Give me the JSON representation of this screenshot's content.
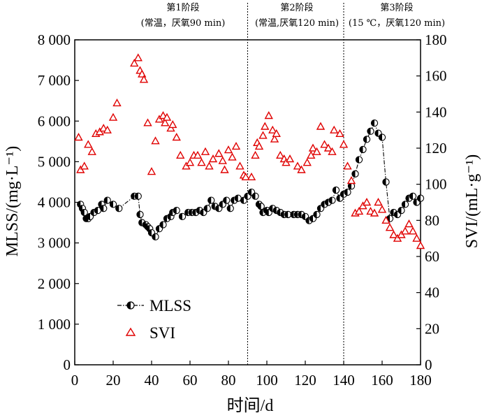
{
  "chart_data": {
    "type": "line",
    "xlabel": "时间/d",
    "ylabel_left": "MLSS/(mg·L⁻¹)",
    "ylabel_right": "SVI/(mL·g⁻¹)",
    "xlim": [
      0,
      180
    ],
    "ylim_left": [
      0,
      8000
    ],
    "ylim_right": [
      0,
      180
    ],
    "x_ticks": [
      0,
      20,
      40,
      60,
      80,
      100,
      120,
      140,
      160,
      180
    ],
    "y_left_ticks": [
      0,
      1000,
      2000,
      3000,
      4000,
      5000,
      6000,
      7000,
      8000
    ],
    "y_left_tick_labels": [
      "0",
      "1 000",
      "2 000",
      "3 000",
      "4 000",
      "5 000",
      "6 000",
      "7 000",
      "8 000"
    ],
    "y_right_ticks": [
      0,
      20,
      40,
      60,
      80,
      100,
      120,
      140,
      160,
      180
    ],
    "grid": false,
    "legend_position": "bottom-left",
    "phase_dividers": [
      90,
      140
    ],
    "phases": [
      {
        "title": "第1阶段",
        "condition": "(常温，厌氧90 min)"
      },
      {
        "title": "第2阶段",
        "condition": "(常温,厌氧120 min)"
      },
      {
        "title": "第3阶段",
        "condition": "(15 ℃，厌氧120 min)"
      }
    ],
    "series": [
      {
        "name": "MLSS",
        "axis": "left",
        "marker": "half-filled-circle",
        "line": "dash-dot",
        "color": "#000000",
        "points": [
          [
            3,
            3950
          ],
          [
            4,
            3850
          ],
          [
            5,
            3750
          ],
          [
            6,
            3600
          ],
          [
            7,
            3600
          ],
          [
            8,
            3650
          ],
          [
            10,
            3750
          ],
          [
            12,
            3800
          ],
          [
            14,
            3950
          ],
          [
            15,
            3850
          ],
          [
            17,
            4050
          ],
          [
            20,
            3950
          ],
          [
            23,
            3850
          ],
          [
            31,
            4150
          ],
          [
            33,
            4150
          ],
          [
            34,
            3700
          ],
          [
            35,
            3500
          ],
          [
            37,
            3450
          ],
          [
            38,
            3400
          ],
          [
            39,
            3350
          ],
          [
            40,
            3250
          ],
          [
            42,
            3150
          ],
          [
            44,
            3350
          ],
          [
            46,
            3450
          ],
          [
            48,
            3600
          ],
          [
            50,
            3650
          ],
          [
            51,
            3750
          ],
          [
            53,
            3800
          ],
          [
            56,
            3650
          ],
          [
            59,
            3750
          ],
          [
            61,
            3750
          ],
          [
            63,
            3750
          ],
          [
            65,
            3800
          ],
          [
            67,
            3750
          ],
          [
            69,
            3850
          ],
          [
            71,
            4050
          ],
          [
            73,
            3900
          ],
          [
            75,
            3850
          ],
          [
            77,
            3950
          ],
          [
            79,
            4050
          ],
          [
            81,
            3850
          ],
          [
            83,
            4050
          ],
          [
            85,
            4100
          ],
          [
            88,
            4050
          ],
          [
            90,
            4150
          ],
          [
            92,
            4250
          ],
          [
            94,
            4150
          ],
          [
            96,
            3950
          ],
          [
            97,
            3900
          ],
          [
            98,
            3750
          ],
          [
            100,
            3800
          ],
          [
            101,
            3750
          ],
          [
            103,
            3850
          ],
          [
            105,
            3800
          ],
          [
            107,
            3750
          ],
          [
            109,
            3700
          ],
          [
            111,
            3700
          ],
          [
            114,
            3700
          ],
          [
            116,
            3700
          ],
          [
            118,
            3700
          ],
          [
            120,
            3650
          ],
          [
            122,
            3550
          ],
          [
            124,
            3600
          ],
          [
            126,
            3700
          ],
          [
            128,
            3850
          ],
          [
            130,
            3950
          ],
          [
            132,
            4000
          ],
          [
            134,
            4050
          ],
          [
            136,
            4300
          ],
          [
            138,
            4100
          ],
          [
            140,
            4200
          ],
          [
            142,
            4250
          ],
          [
            144,
            4400
          ],
          [
            146,
            4700
          ],
          [
            148,
            5050
          ],
          [
            150,
            5300
          ],
          [
            152,
            5550
          ],
          [
            154,
            5750
          ],
          [
            156,
            5950
          ],
          [
            158,
            5700
          ],
          [
            160,
            5600
          ],
          [
            162,
            4500
          ],
          [
            164,
            3600
          ],
          [
            166,
            3750
          ],
          [
            168,
            3700
          ],
          [
            170,
            3800
          ],
          [
            172,
            3950
          ],
          [
            174,
            4100
          ],
          [
            176,
            4150
          ],
          [
            178,
            4000
          ],
          [
            180,
            4100
          ]
        ]
      },
      {
        "name": "SVI",
        "axis": "right",
        "marker": "triangle",
        "color": "#e00000",
        "points": [
          [
            2,
            126
          ],
          [
            3,
            108
          ],
          [
            5,
            110
          ],
          [
            7,
            122
          ],
          [
            9,
            118
          ],
          [
            11,
            128
          ],
          [
            13,
            129
          ],
          [
            15,
            131
          ],
          [
            17,
            130
          ],
          [
            20,
            137
          ],
          [
            22,
            145
          ],
          [
            31,
            167
          ],
          [
            33,
            170
          ],
          [
            34,
            163
          ],
          [
            35,
            161
          ],
          [
            36,
            158
          ],
          [
            38,
            134
          ],
          [
            42,
            124
          ],
          [
            40,
            107
          ],
          [
            44,
            136
          ],
          [
            46,
            138
          ],
          [
            47,
            134
          ],
          [
            48,
            137
          ],
          [
            50,
            131
          ],
          [
            51,
            133
          ],
          [
            53,
            126
          ],
          [
            55,
            116
          ],
          [
            58,
            110
          ],
          [
            60,
            112
          ],
          [
            62,
            116
          ],
          [
            64,
            116
          ],
          [
            66,
            112
          ],
          [
            68,
            118
          ],
          [
            70,
            110
          ],
          [
            72,
            114
          ],
          [
            75,
            117
          ],
          [
            77,
            113
          ],
          [
            78,
            108
          ],
          [
            80,
            119
          ],
          [
            82,
            115
          ],
          [
            84,
            121
          ],
          [
            86,
            110
          ],
          [
            88,
            105
          ],
          [
            89,
            104
          ],
          [
            92,
            104
          ],
          [
            94,
            116
          ],
          [
            95,
            123
          ],
          [
            96,
            121
          ],
          [
            98,
            127
          ],
          [
            99,
            132
          ],
          [
            101,
            138
          ],
          [
            103,
            130
          ],
          [
            104,
            125
          ],
          [
            105,
            128
          ],
          [
            107,
            116
          ],
          [
            109,
            114
          ],
          [
            110,
            112
          ],
          [
            112,
            114
          ],
          [
            116,
            110
          ],
          [
            118,
            108
          ],
          [
            121,
            112
          ],
          [
            123,
            116
          ],
          [
            124,
            120
          ],
          [
            126,
            118
          ],
          [
            128,
            132
          ],
          [
            130,
            122
          ],
          [
            132,
            120
          ],
          [
            134,
            118
          ],
          [
            135,
            130
          ],
          [
            138,
            128
          ],
          [
            140,
            122
          ],
          [
            142,
            110
          ],
          [
            144,
            102
          ],
          [
            146,
            84
          ],
          [
            148,
            85
          ],
          [
            150,
            88
          ],
          [
            152,
            90
          ],
          [
            154,
            85
          ],
          [
            156,
            84
          ],
          [
            158,
            90
          ],
          [
            160,
            86
          ],
          [
            162,
            80
          ],
          [
            164,
            76
          ],
          [
            166,
            72
          ],
          [
            168,
            70
          ],
          [
            170,
            72
          ],
          [
            172,
            74
          ],
          [
            174,
            78
          ],
          [
            176,
            74
          ],
          [
            178,
            70
          ],
          [
            180,
            66
          ]
        ]
      }
    ]
  }
}
